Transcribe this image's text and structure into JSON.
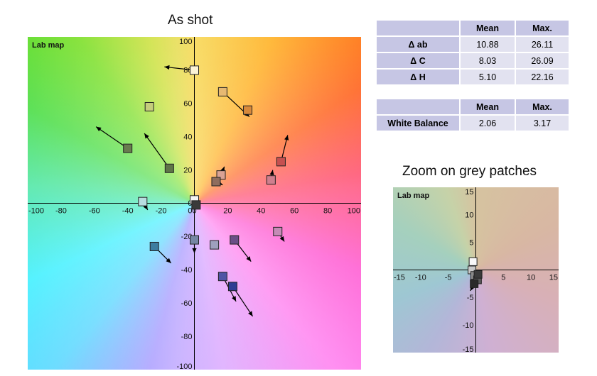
{
  "chart_data": [
    {
      "type": "scatter",
      "title": "As shot",
      "corner_label": "Lab map",
      "xlim": [
        -100,
        100
      ],
      "ylim": [
        -100,
        100
      ],
      "xticks": [
        -100,
        -80,
        -60,
        -40,
        -20,
        0,
        20,
        40,
        60,
        80,
        100
      ],
      "yticks": [
        -100,
        -80,
        -60,
        -40,
        -20,
        0,
        20,
        40,
        60,
        80,
        100
      ],
      "grid": false,
      "points": [
        {
          "a": 0,
          "b": 80,
          "a2": -18,
          "b2": 82,
          "color": "#fbf3d6"
        },
        {
          "a": 17,
          "b": 67,
          "a2": 33,
          "b2": 52,
          "color": "#e6b972"
        },
        {
          "a": 32,
          "b": 56,
          "a2": 32,
          "b2": 56,
          "color": "#d8893b"
        },
        {
          "a": -27,
          "b": 58,
          "a2": -27,
          "b2": 58,
          "color": "#c5cd7c"
        },
        {
          "a": -40,
          "b": 33,
          "a2": -59,
          "b2": 46,
          "color": "#697b4f"
        },
        {
          "a": -15,
          "b": 21,
          "a2": -30,
          "b2": 42,
          "color": "#5f7448"
        },
        {
          "a": 52,
          "b": 25,
          "a2": 56,
          "b2": 41,
          "color": "#c65050"
        },
        {
          "a": 46,
          "b": 14,
          "a2": 47,
          "b2": 20,
          "color": "#cf7f8e"
        },
        {
          "a": 16,
          "b": 17,
          "a2": 18,
          "b2": 22,
          "color": "#d9a295"
        },
        {
          "a": 13,
          "b": 13,
          "a2": 17,
          "b2": 11,
          "color": "#8f6d5e"
        },
        {
          "a": 0,
          "b": 2,
          "a2": 0,
          "b2": 2,
          "color": "#f4f4f4"
        },
        {
          "a": 1,
          "b": -1,
          "a2": 1,
          "b2": -1,
          "color": "#3a3a3a"
        },
        {
          "a": -31,
          "b": 1,
          "a2": -28,
          "b2": -4,
          "color": "#b8dde0"
        },
        {
          "a": 0,
          "b": -22,
          "a2": 0,
          "b2": -30,
          "color": "#7587a3"
        },
        {
          "a": 12,
          "b": -25,
          "a2": 12,
          "b2": -25,
          "color": "#9ea0bd"
        },
        {
          "a": 24,
          "b": -22,
          "a2": 34,
          "b2": -35,
          "color": "#6a4f86"
        },
        {
          "a": 50,
          "b": -17,
          "a2": 54,
          "b2": -23,
          "color": "#c58bb6"
        },
        {
          "a": -24,
          "b": -26,
          "a2": -14,
          "b2": -36,
          "color": "#3d7ea0"
        },
        {
          "a": 17,
          "b": -44,
          "a2": 25,
          "b2": -59,
          "color": "#4f55a5"
        },
        {
          "a": 23,
          "b": -50,
          "a2": 35,
          "b2": -68,
          "color": "#2f3d93"
        }
      ]
    },
    {
      "type": "scatter",
      "title": "Zoom on grey patches",
      "corner_label": "Lab map",
      "xlim": [
        -15,
        15
      ],
      "ylim": [
        -15,
        15
      ],
      "xticks": [
        -15,
        -10,
        -5,
        5,
        10,
        15
      ],
      "yticks": [
        -15,
        -10,
        -5,
        5,
        10,
        15
      ],
      "grid": false,
      "points": [
        {
          "a": -0.5,
          "b": 1.5,
          "a2": -0.5,
          "b2": 1.5,
          "color": "#f8f8f8"
        },
        {
          "a": -0.7,
          "b": 0.0,
          "a2": -0.7,
          "b2": 0.0,
          "color": "#c8c8c8"
        },
        {
          "a": -0.2,
          "b": -1.0,
          "a2": -0.2,
          "b2": -1.0,
          "color": "#8a8a8a"
        },
        {
          "a": 0.3,
          "b": -1.8,
          "a2": 0.3,
          "b2": -3.0,
          "color": "#5a5a5a"
        },
        {
          "a": -0.3,
          "b": -2.5,
          "a2": -1.0,
          "b2": -3.8,
          "color": "#2a2a2a"
        },
        {
          "a": 0.4,
          "b": -0.8,
          "a2": 0.4,
          "b2": -0.8,
          "color": "#3a3a3a"
        }
      ]
    }
  ],
  "table1": {
    "headers": [
      "",
      "Mean",
      "Max."
    ],
    "rows": [
      {
        "label": "Δ ab",
        "mean": "10.88",
        "max": "26.11"
      },
      {
        "label": "Δ C",
        "mean": "8.03",
        "max": "26.09"
      },
      {
        "label": "Δ H",
        "mean": "5.10",
        "max": "22.16"
      }
    ]
  },
  "table2": {
    "headers": [
      "",
      "Mean",
      "Max."
    ],
    "rows": [
      {
        "label": "White Balance",
        "mean": "2.06",
        "max": "3.17"
      }
    ]
  }
}
